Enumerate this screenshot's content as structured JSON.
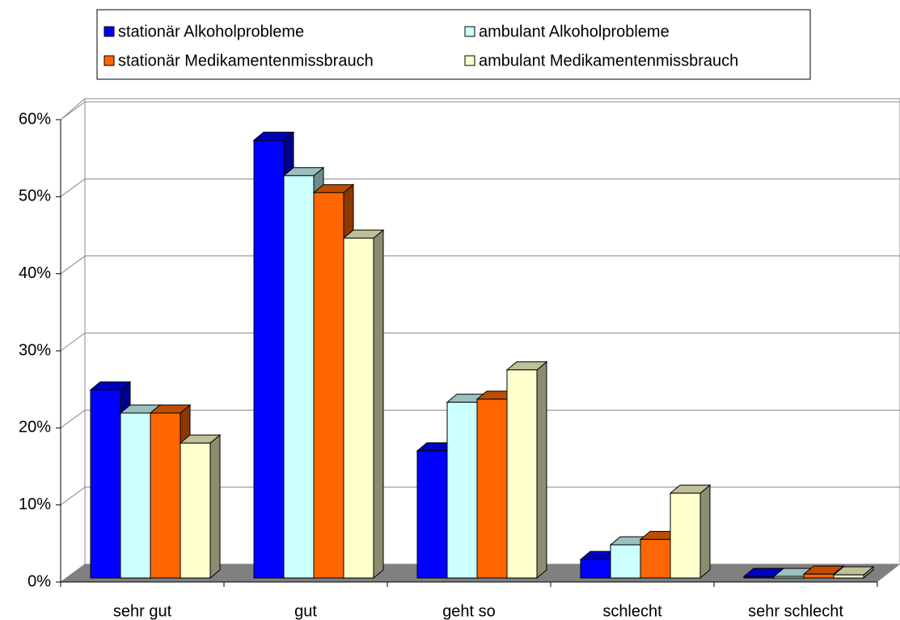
{
  "chart_data": {
    "type": "bar3d",
    "categories": [
      "sehr gut",
      "gut",
      "geht so",
      "schlecht",
      "sehr schlecht"
    ],
    "series": [
      {
        "name": "stationär Alkoholprobleme",
        "color": "#0000ff",
        "values": [
          24.4,
          56.8,
          16.5,
          2.4,
          0.2
        ]
      },
      {
        "name": "ambulant Alkoholprobleme",
        "color": "#ccffff",
        "values": [
          21.4,
          52.2,
          22.8,
          4.3,
          0.2
        ]
      },
      {
        "name": "stationär Medikamentenmissbrauch",
        "color": "#ff6600",
        "values": [
          21.4,
          50.0,
          23.2,
          5.0,
          0.5
        ]
      },
      {
        "name": "ambulant Medikamentenmissbrauch",
        "color": "#ffffcc",
        "values": [
          17.5,
          44.1,
          27.0,
          11.0,
          0.4
        ]
      }
    ],
    "ylim": [
      0,
      60
    ],
    "yticks": [
      {
        "value": 0,
        "label": "0%"
      },
      {
        "value": 10,
        "label": "10%"
      },
      {
        "value": 20,
        "label": "20%"
      },
      {
        "value": 30,
        "label": "30%"
      },
      {
        "value": 40,
        "label": "40%"
      },
      {
        "value": 50,
        "label": "50%"
      },
      {
        "value": 60,
        "label": "60%"
      }
    ],
    "grid": true
  }
}
